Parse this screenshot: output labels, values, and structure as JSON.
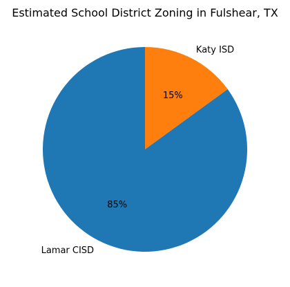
{
  "chart_data": {
    "type": "pie",
    "title": "Estimated School District Zoning in Fulshear, TX",
    "start_angle_deg": 90,
    "direction": "clockwise",
    "slices": [
      {
        "label": "Katy ISD",
        "value": 15,
        "pct_label": "15%",
        "color": "#ff7f0e"
      },
      {
        "label": "Lamar CISD",
        "value": 85,
        "pct_label": "85%",
        "color": "#1f77b4"
      }
    ]
  }
}
